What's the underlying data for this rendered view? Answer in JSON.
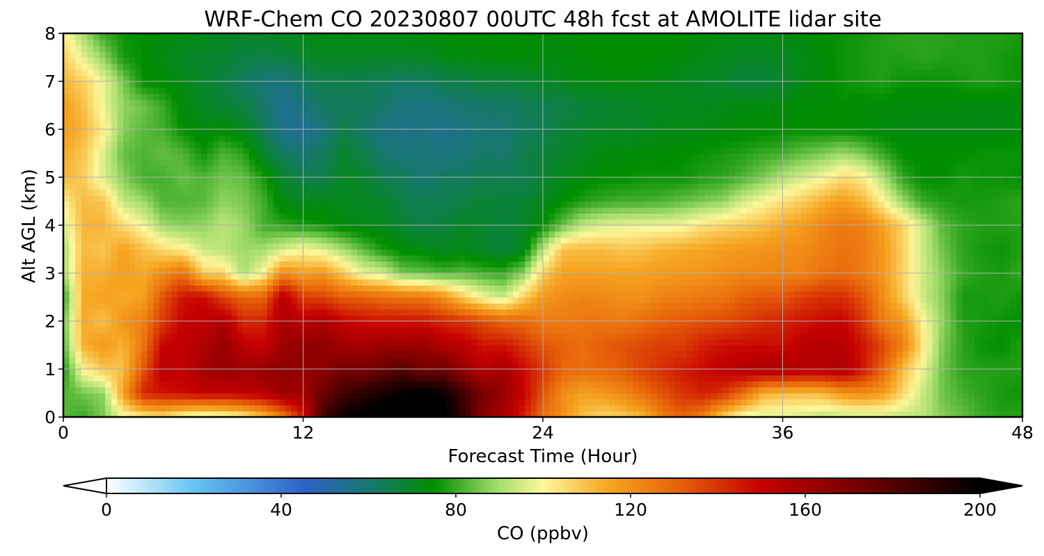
{
  "chart_data": {
    "type": "heatmap",
    "title": "WRF-Chem CO  20230807 00UTC 48h fcst at AMOLITE lidar site",
    "xlabel": "Forecast Time (Hour)",
    "ylabel": "Alt AGL (km)",
    "xlim": [
      0,
      48
    ],
    "ylim": [
      0,
      8
    ],
    "xticks": [
      "0",
      "12",
      "24",
      "36",
      "48"
    ],
    "yticks": [
      "0",
      "1",
      "2",
      "3",
      "4",
      "5",
      "6",
      "7",
      "8"
    ],
    "grid": true,
    "colorbar": {
      "label": "CO  (ppbv)",
      "range": [
        0,
        200
      ],
      "ticks": [
        "0",
        "40",
        "80",
        "120",
        "160",
        "200"
      ],
      "extend": "both",
      "color_stops": [
        {
          "value": 0,
          "color": "#ffffff"
        },
        {
          "value": 20,
          "color": "#66c4f2"
        },
        {
          "value": 45,
          "color": "#2f62c8"
        },
        {
          "value": 60,
          "color": "#16776e"
        },
        {
          "value": 75,
          "color": "#008e00"
        },
        {
          "value": 90,
          "color": "#a8df6e"
        },
        {
          "value": 100,
          "color": "#fdf79a"
        },
        {
          "value": 115,
          "color": "#f6a521"
        },
        {
          "value": 130,
          "color": "#e8660a"
        },
        {
          "value": 150,
          "color": "#c60000"
        },
        {
          "value": 175,
          "color": "#6a0000"
        },
        {
          "value": 200,
          "color": "#000000"
        }
      ]
    },
    "field_x_hours": [
      0,
      1,
      2,
      3,
      4,
      5,
      6,
      7,
      8,
      9,
      10,
      11,
      12,
      13,
      14,
      15,
      16,
      17,
      18,
      19,
      20,
      21,
      22,
      23,
      24,
      25,
      26,
      27,
      28,
      29,
      30,
      31,
      32,
      33,
      34,
      35,
      36,
      37,
      38,
      39,
      40,
      41,
      42,
      43,
      44,
      45,
      46,
      47,
      48
    ],
    "field_y_km": [
      0,
      0.5,
      1,
      1.5,
      2,
      2.5,
      3,
      3.5,
      4,
      4.5,
      5,
      5.5,
      6,
      6.5,
      7,
      7.5,
      8
    ],
    "field_ppbv": [
      [
        83,
        80,
        86,
        98,
        101,
        104,
        97,
        94,
        96,
        100,
        110,
        123,
        145,
        185,
        198,
        202,
        205,
        206,
        204,
        203,
        188,
        165,
        158,
        145,
        128,
        120,
        110,
        106,
        108,
        112,
        125,
        130,
        123,
        107,
        97,
        96,
        96,
        95,
        92,
        93,
        93,
        94,
        93,
        92,
        87,
        84,
        80,
        78,
        79
      ],
      [
        82,
        85,
        88,
        117,
        143,
        146,
        148,
        151,
        150,
        152,
        154,
        162,
        160,
        175,
        185,
        190,
        195,
        199,
        202,
        198,
        185,
        172,
        163,
        150,
        134,
        121,
        116,
        118,
        122,
        128,
        134,
        140,
        144,
        140,
        129,
        113,
        111,
        110,
        112,
        118,
        121,
        117,
        106,
        94,
        85,
        81,
        79,
        77,
        76
      ],
      [
        77,
        101,
        109,
        110,
        133,
        154,
        151,
        160,
        163,
        161,
        163,
        166,
        164,
        165,
        172,
        170,
        176,
        181,
        172,
        174,
        163,
        153,
        160,
        148,
        139,
        130,
        128,
        130,
        132,
        137,
        141,
        145,
        148,
        152,
        155,
        158,
        158,
        155,
        155,
        158,
        146,
        131,
        111,
        98,
        85,
        79,
        78,
        78,
        78
      ],
      [
        82,
        113,
        118,
        112,
        126,
        150,
        152,
        156,
        163,
        152,
        150,
        161,
        164,
        165,
        160,
        159,
        162,
        161,
        163,
        156,
        153,
        146,
        146,
        140,
        133,
        131,
        128,
        132,
        134,
        136,
        138,
        138,
        144,
        147,
        148,
        148,
        147,
        153,
        155,
        154,
        146,
        136,
        124,
        104,
        86,
        79,
        76,
        75,
        78
      ],
      [
        84,
        114,
        110,
        119,
        124,
        139,
        150,
        151,
        156,
        142,
        143,
        158,
        153,
        157,
        150,
        147,
        146,
        146,
        146,
        142,
        140,
        135,
        130,
        129,
        125,
        125,
        126,
        126,
        125,
        128,
        131,
        133,
        134,
        135,
        138,
        141,
        143,
        146,
        148,
        150,
        140,
        125,
        118,
        101,
        88,
        78,
        77,
        76,
        75
      ],
      [
        78,
        114,
        116,
        114,
        116,
        134,
        147,
        149,
        137,
        130,
        130,
        155,
        138,
        137,
        132,
        131,
        128,
        127,
        126,
        120,
        108,
        99,
        94,
        107,
        118,
        121,
        123,
        122,
        120,
        120,
        124,
        124,
        126,
        127,
        131,
        133,
        133,
        138,
        141,
        141,
        134,
        121,
        108,
        94,
        87,
        77,
        77,
        78,
        76
      ],
      [
        89,
        113,
        113,
        117,
        114,
        121,
        128,
        107,
        106,
        90,
        100,
        122,
        116,
        118,
        108,
        98,
        95,
        85,
        84,
        82,
        83,
        81,
        80,
        87,
        107,
        116,
        116,
        116,
        116,
        116,
        117,
        118,
        119,
        120,
        122,
        122,
        123,
        123,
        127,
        129,
        125,
        118,
        107,
        95,
        87,
        80,
        78,
        77,
        80
      ],
      [
        90,
        111,
        109,
        116,
        110,
        105,
        102,
        94,
        92,
        89,
        90,
        95,
        100,
        96,
        90,
        83,
        77,
        74,
        73,
        70,
        72,
        69,
        67,
        71,
        92,
        110,
        111,
        111,
        109,
        110,
        113,
        114,
        115,
        117,
        118,
        119,
        120,
        121,
        124,
        127,
        125,
        118,
        107,
        94,
        85,
        79,
        77,
        76,
        78
      ],
      [
        95,
        112,
        112,
        105,
        99,
        89,
        87,
        88,
        92,
        89,
        81,
        79,
        77,
        76,
        73,
        72,
        71,
        68,
        65,
        67,
        70,
        69,
        67,
        69,
        75,
        84,
        93,
        96,
        97,
        98,
        98,
        99,
        104,
        106,
        108,
        110,
        114,
        117,
        122,
        126,
        124,
        116,
        107,
        94,
        83,
        79,
        78,
        78,
        78
      ],
      [
        101,
        111,
        109,
        93,
        89,
        82,
        82,
        83,
        88,
        86,
        81,
        72,
        71,
        72,
        71,
        70,
        69,
        65,
        64,
        64,
        66,
        68,
        67,
        68,
        71,
        75,
        78,
        80,
        81,
        81,
        82,
        84,
        86,
        88,
        95,
        100,
        104,
        108,
        113,
        117,
        112,
        101,
        89,
        80,
        78,
        77,
        77,
        78,
        79
      ],
      [
        112,
        108,
        96,
        87,
        81,
        81,
        84,
        82,
        85,
        84,
        77,
        69,
        64,
        65,
        70,
        69,
        64,
        63,
        59,
        62,
        62,
        64,
        64,
        64,
        68,
        71,
        73,
        75,
        75,
        76,
        76,
        76,
        78,
        79,
        82,
        86,
        91,
        95,
        99,
        105,
        102,
        91,
        79,
        75,
        75,
        77,
        76,
        76,
        75
      ],
      [
        114,
        109,
        96,
        84,
        82,
        84,
        82,
        76,
        82,
        79,
        69,
        62,
        60,
        62,
        69,
        65,
        60,
        58,
        59,
        57,
        59,
        61,
        60,
        65,
        67,
        69,
        71,
        73,
        73,
        74,
        74,
        75,
        76,
        77,
        78,
        80,
        81,
        84,
        86,
        89,
        86,
        80,
        75,
        75,
        75,
        75,
        76,
        76,
        76
      ],
      [
        117,
        112,
        102,
        87,
        83,
        81,
        75,
        73,
        74,
        71,
        63,
        55,
        53,
        58,
        65,
        61,
        57,
        56,
        57,
        55,
        57,
        59,
        59,
        62,
        64,
        67,
        69,
        70,
        70,
        70,
        72,
        72,
        72,
        73,
        74,
        74,
        75,
        75,
        75,
        75,
        74,
        73,
        73,
        73,
        73,
        73,
        72,
        73,
        73
      ],
      [
        117,
        110,
        98,
        88,
        85,
        80,
        73,
        70,
        68,
        66,
        61,
        54,
        58,
        62,
        62,
        63,
        61,
        58,
        57,
        58,
        60,
        61,
        61,
        63,
        64,
        65,
        67,
        68,
        69,
        70,
        71,
        71,
        71,
        72,
        73,
        73,
        74,
        74,
        74,
        75,
        74,
        74,
        73,
        73,
        73,
        73,
        72,
        73,
        73
      ],
      [
        112,
        107,
        98,
        86,
        75,
        74,
        72,
        69,
        66,
        62,
        59,
        58,
        62,
        65,
        65,
        64,
        63,
        61,
        62,
        64,
        65,
        67,
        67,
        68,
        70,
        71,
        73,
        73,
        74,
        73,
        72,
        71,
        70,
        69,
        67,
        67,
        69,
        72,
        74,
        76,
        77,
        78,
        76,
        76,
        76,
        77,
        78,
        77,
        76
      ],
      [
        108,
        97,
        88,
        77,
        75,
        72,
        70,
        69,
        68,
        66,
        65,
        66,
        69,
        70,
        70,
        70,
        70,
        70,
        70,
        72,
        73,
        73,
        74,
        74,
        73,
        73,
        74,
        75,
        75,
        75,
        74,
        73,
        72,
        71,
        70,
        70,
        71,
        72,
        74,
        76,
        77,
        78,
        78,
        79,
        78,
        78,
        78,
        77,
        76
      ],
      [
        102,
        90,
        80,
        76,
        75,
        74,
        73,
        72,
        71,
        70,
        70,
        71,
        72,
        73,
        73,
        73,
        73,
        73,
        74,
        74,
        75,
        75,
        75,
        75,
        74,
        74,
        75,
        75,
        75,
        75,
        75,
        75,
        74,
        73,
        73,
        73,
        73,
        74,
        75,
        76,
        77,
        78,
        79,
        79,
        79,
        78,
        78,
        78,
        77
      ]
    ]
  }
}
